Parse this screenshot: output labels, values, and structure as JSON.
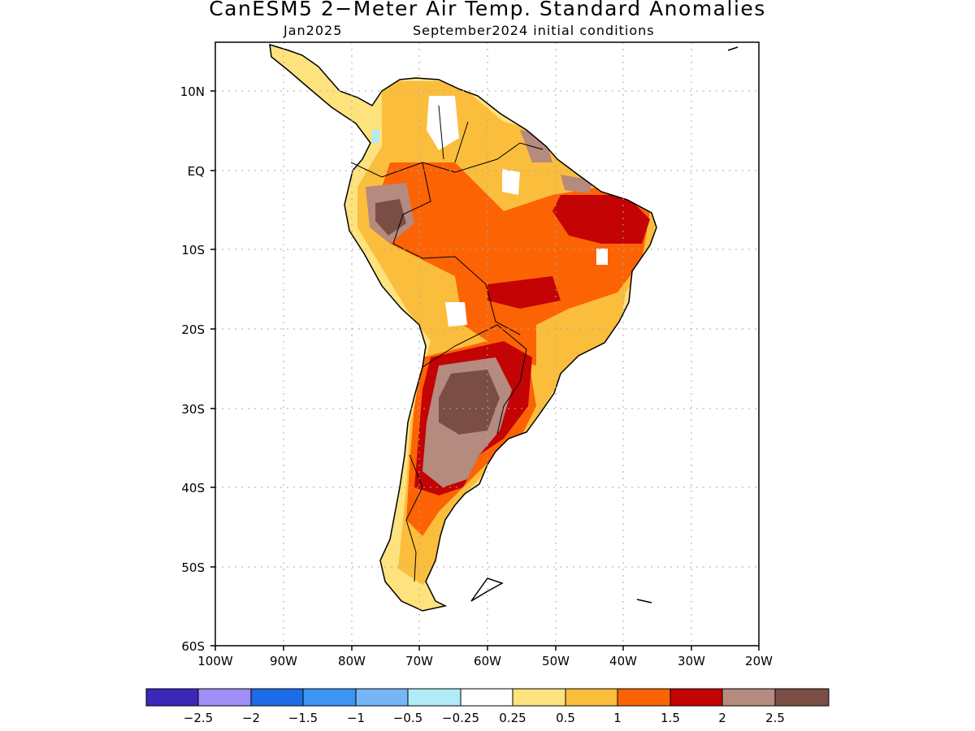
{
  "title": "CanESM5 2−Meter Air Temp. Standard Anomalies",
  "subtitle_left": "Jan2025",
  "subtitle_right": "September2024 initial conditions",
  "lat_ticks": [
    "10N",
    "EQ",
    "10S",
    "20S",
    "30S",
    "40S",
    "50S",
    "60S"
  ],
  "lon_ticks": [
    "100W",
    "90W",
    "80W",
    "70W",
    "60W",
    "50W",
    "40W",
    "30W",
    "20W"
  ],
  "colorbar": {
    "colors": [
      "#3b28b8",
      "#9f8ef5",
      "#1d6be8",
      "#3d94f2",
      "#76b5f8",
      "#b0ecf8",
      "#ffffff",
      "#fde27e",
      "#fbbd3c",
      "#fc6305",
      "#c30304",
      "#b58a7f",
      "#7a4e44"
    ],
    "labels": [
      "−2.5",
      "−2",
      "−1.5",
      "−1",
      "−0.5",
      "−0.25",
      "0.25",
      "0.5",
      "1",
      "1.5",
      "2",
      "2.5"
    ]
  }
}
